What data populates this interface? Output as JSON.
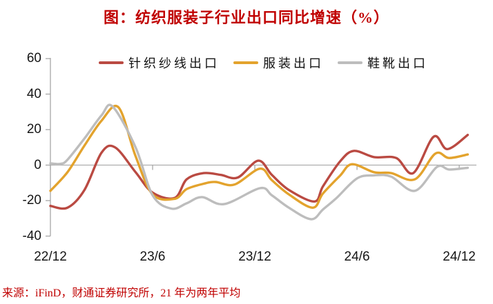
{
  "title": "图：纺织服装子行业出口同比增速（%）",
  "source_note": "来源：iFinD，财通证券研究所，21 年为两年平均",
  "colors": {
    "title_red": "#C00000",
    "axis_gray": "#A6A6A6",
    "zero_line_gray": "#ADADAD",
    "tick_text": "#161616",
    "series_red": "#BA4A42",
    "series_orange": "#E3A32D",
    "series_gray": "#BDBDBD"
  },
  "chart_data": {
    "type": "line",
    "title": "图：纺织服装子行业出口同比增速（%）",
    "x_unit": "months since 22/12",
    "x_axis": {
      "tick_labels": [
        "22/12",
        "23/6",
        "23/12",
        "24/6",
        "24/12"
      ],
      "tick_months": [
        0,
        6,
        12,
        18,
        24
      ]
    },
    "y_axis": {
      "tick_labels": [
        "60",
        "40",
        "20",
        "0",
        "-20",
        "-40"
      ],
      "tick_values": [
        60,
        40,
        20,
        0,
        -20,
        -40
      ],
      "range": [
        -40,
        60
      ]
    },
    "grid": false,
    "legend_position": "top-center",
    "series": [
      {
        "name": "针织纱线出口",
        "color": "#BA4A42",
        "points": [
          [
            0,
            -23
          ],
          [
            1,
            -24
          ],
          [
            2,
            -14
          ],
          [
            3,
            7
          ],
          [
            3.8,
            10
          ],
          [
            5,
            -4
          ],
          [
            6,
            -15.5
          ],
          [
            7.3,
            -18.5
          ],
          [
            8,
            -8
          ],
          [
            9,
            -4.5
          ],
          [
            10,
            -5.5
          ],
          [
            11,
            -7
          ],
          [
            12.2,
            2.5
          ],
          [
            13,
            -5.5
          ],
          [
            14,
            -14
          ],
          [
            15.5,
            -20.5
          ],
          [
            16,
            -12
          ],
          [
            17,
            2
          ],
          [
            17.8,
            8
          ],
          [
            19,
            4.5
          ],
          [
            20.3,
            4
          ],
          [
            21.3,
            -4.5
          ],
          [
            22.5,
            16
          ],
          [
            23.3,
            9
          ],
          [
            24.5,
            17
          ]
        ]
      },
      {
        "name": "服装出口",
        "color": "#E3A32D",
        "points": [
          [
            0,
            -14.5
          ],
          [
            1,
            -4
          ],
          [
            2,
            11
          ],
          [
            3,
            25
          ],
          [
            4,
            32.5
          ],
          [
            5,
            5
          ],
          [
            6,
            -16.5
          ],
          [
            7.3,
            -19
          ],
          [
            8,
            -13.5
          ],
          [
            9,
            -10.5
          ],
          [
            9.7,
            -9.5
          ],
          [
            10.8,
            -11
          ],
          [
            12.3,
            -2
          ],
          [
            13,
            -8.5
          ],
          [
            14,
            -16.5
          ],
          [
            15.4,
            -24
          ],
          [
            16,
            -16
          ],
          [
            17,
            -6
          ],
          [
            17.7,
            0.5
          ],
          [
            19,
            -4
          ],
          [
            20,
            -4.5
          ],
          [
            21.4,
            -8
          ],
          [
            22.6,
            6.5
          ],
          [
            23.4,
            4
          ],
          [
            24.5,
            6
          ]
        ]
      },
      {
        "name": "鞋靴出口",
        "color": "#BDBDBD",
        "points": [
          [
            0,
            1
          ],
          [
            0.6,
            0.7
          ],
          [
            1,
            3
          ],
          [
            2,
            15
          ],
          [
            3,
            28
          ],
          [
            3.65,
            33
          ],
          [
            5,
            10
          ],
          [
            6,
            -17
          ],
          [
            7.1,
            -24.5
          ],
          [
            8,
            -21.5
          ],
          [
            8.9,
            -18
          ],
          [
            10.2,
            -22
          ],
          [
            12.3,
            -13
          ],
          [
            13,
            -17
          ],
          [
            14,
            -24
          ],
          [
            15.3,
            -30.5
          ],
          [
            16,
            -25
          ],
          [
            16.8,
            -18.5
          ],
          [
            18,
            -7.5
          ],
          [
            19,
            -5.8
          ],
          [
            20,
            -6.5
          ],
          [
            21.4,
            -14.5
          ],
          [
            22.7,
            -1
          ],
          [
            23.4,
            -2.5
          ],
          [
            24.5,
            -1.5
          ]
        ]
      }
    ]
  }
}
